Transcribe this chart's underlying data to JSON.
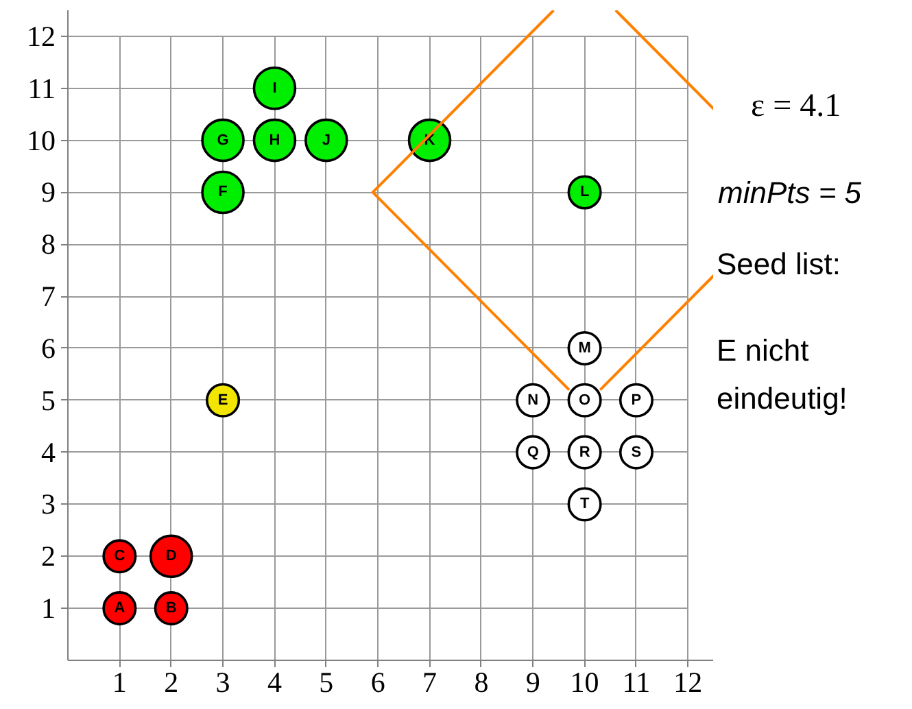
{
  "chart_data": {
    "type": "bubble",
    "xlim": [
      0,
      12.5
    ],
    "ylim": [
      0,
      12.5
    ],
    "xticks": [
      1,
      2,
      3,
      4,
      5,
      6,
      7,
      8,
      9,
      10,
      11,
      12
    ],
    "yticks": [
      1,
      2,
      3,
      4,
      5,
      6,
      7,
      8,
      9,
      10,
      11,
      12
    ],
    "grid": true,
    "series": [
      {
        "color": "#ff0000",
        "marker": "circle",
        "x": [
          1,
          2,
          1,
          2
        ],
        "values": [
          1,
          1,
          2,
          2
        ],
        "sizes": [
          0.6,
          0.6,
          0.6,
          1
        ],
        "value_labels": [
          "A",
          "B",
          "C",
          "D"
        ]
      },
      {
        "color": "#f2e600",
        "marker": "circle",
        "x": [
          3
        ],
        "values": [
          5
        ],
        "sizes": [
          0.6
        ],
        "value_labels": [
          "E"
        ]
      },
      {
        "color": "#00ee00",
        "marker": "circle",
        "x": [
          3,
          3,
          4,
          4,
          5,
          7,
          10
        ],
        "values": [
          9,
          10,
          10,
          11,
          10,
          10,
          9
        ],
        "sizes": [
          1,
          1,
          1,
          1,
          1,
          1,
          0.6
        ],
        "value_labels": [
          "F",
          "G",
          "H",
          "I",
          "J",
          "K",
          "L"
        ]
      },
      {
        "type": "line",
        "color": "#ff8000",
        "x": [
          9.4,
          5.9,
          9.7,
          null,
          10.3,
          12.5,
          null,
          10.6,
          12.5
        ],
        "values": [
          12.5,
          9,
          5.2,
          null,
          5.2,
          7.4,
          null,
          12.5,
          10.6
        ]
      },
      {
        "color": "#ffffff",
        "marker": "circle",
        "x": [
          10,
          9,
          10,
          11,
          9,
          10,
          11,
          10
        ],
        "values": [
          6,
          5,
          5,
          5,
          4,
          4,
          4,
          3
        ],
        "sizes": [
          0.6,
          0.6,
          0.6,
          0.6,
          0.6,
          0.6,
          0.6,
          0.6
        ],
        "value_labels": [
          "M",
          "N",
          "O",
          "P",
          "Q",
          "R",
          "S",
          "T"
        ]
      }
    ],
    "annotations": [
      "ε = 4.1",
      "minPts = 5",
      "Seed list:",
      "E nicht eindeutig!"
    ]
  }
}
